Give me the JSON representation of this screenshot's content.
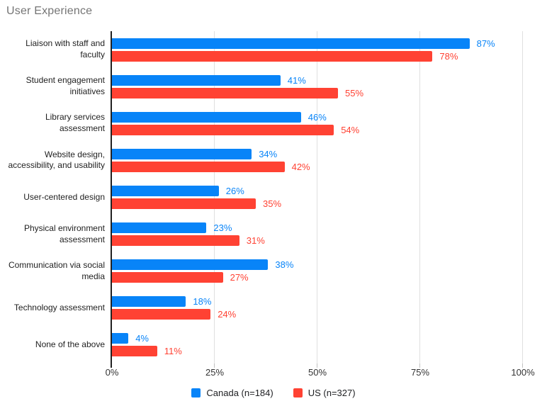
{
  "chart_data": {
    "type": "bar",
    "orientation": "horizontal",
    "title": "User Experience",
    "categories": [
      "Liaison with staff and faculty",
      "Student engagement initiatives",
      "Library services assessment",
      "Website design, accessibility, and usability",
      "User-centered design",
      "Physical environment assessment",
      "Communication via social media",
      "Technology assessment",
      "None of the above"
    ],
    "series": [
      {
        "name": "Canada (n=184)",
        "color": "#0884f8",
        "values": [
          87,
          41,
          46,
          34,
          26,
          23,
          38,
          18,
          4
        ]
      },
      {
        "name": "US (n=327)",
        "color": "#ff4233",
        "values": [
          78,
          55,
          54,
          42,
          35,
          31,
          27,
          24,
          11
        ]
      }
    ],
    "value_suffix": "%",
    "x_ticks": [
      {
        "value": 0,
        "label": "0%"
      },
      {
        "value": 25,
        "label": "25%"
      },
      {
        "value": 50,
        "label": "50%"
      },
      {
        "value": 75,
        "label": "75%"
      },
      {
        "value": 100,
        "label": "100%"
      }
    ],
    "xlim": [
      0,
      100
    ],
    "grid": true,
    "legend_position": "bottom",
    "colors": {
      "title": "#757575",
      "axis_line": "#212121",
      "gridline": "#e0e0e0",
      "tick_mark": "#c2c2c2",
      "axis_text": "#333333",
      "category_text": "#1f1f1f",
      "legend_text": "#202124",
      "background": "#ffffff"
    }
  }
}
